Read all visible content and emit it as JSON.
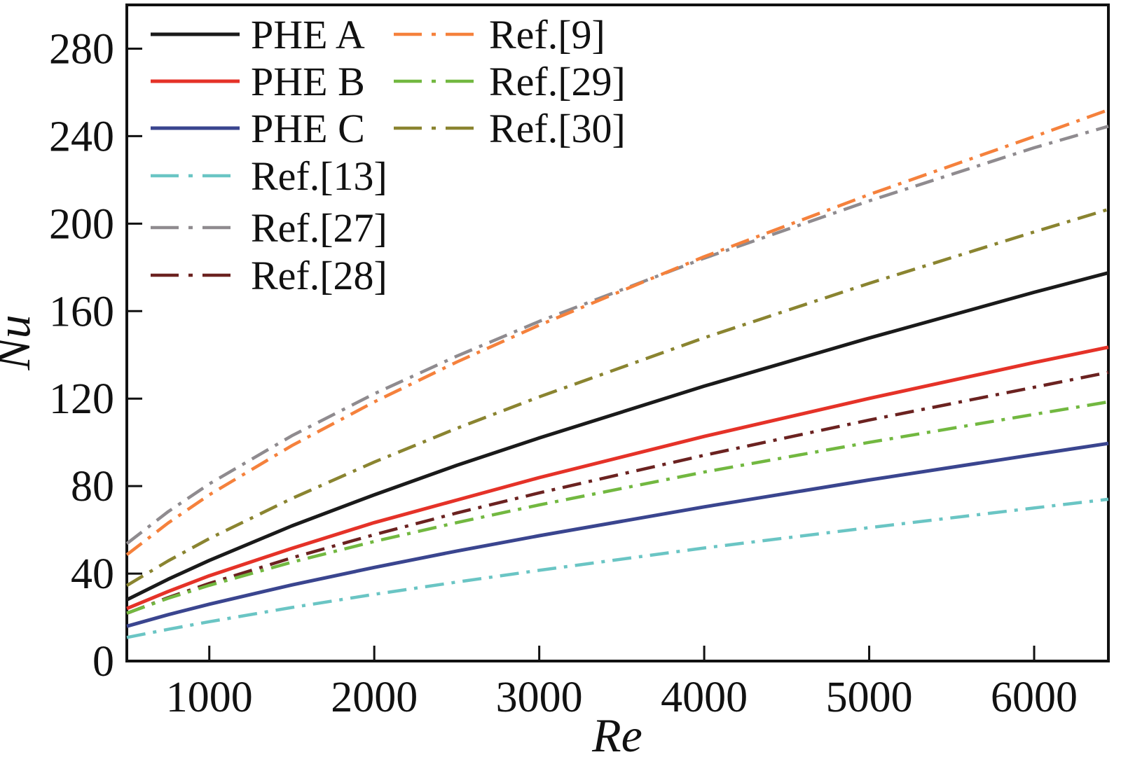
{
  "chart_data": {
    "type": "line",
    "title": "",
    "xlabel": "Re",
    "ylabel": "Nu",
    "xlim": [
      500,
      6450
    ],
    "ylim": [
      0,
      300
    ],
    "xticks": [
      1000,
      2000,
      3000,
      4000,
      5000,
      6000
    ],
    "yticks": [
      0,
      40,
      80,
      120,
      160,
      200,
      240,
      280
    ],
    "grid": false,
    "legend_position": "upper-left-two-columns",
    "x": [
      500,
      750,
      1000,
      1500,
      2000,
      2500,
      3000,
      4000,
      5000,
      6000,
      6450
    ],
    "series": [
      {
        "name": "PHE A",
        "color": "#1a1a1a",
        "style": "solid",
        "values": [
          28.0,
          37.4,
          46.0,
          61.8,
          76.0,
          89.5,
          102.0,
          125.7,
          147.7,
          168.6,
          177.5
        ]
      },
      {
        "name": "PHE B",
        "color": "#e53228",
        "style": "solid",
        "values": [
          24.0,
          31.8,
          39.0,
          51.5,
          63.3,
          73.6,
          83.9,
          102.7,
          120.1,
          136.5,
          143.5
        ]
      },
      {
        "name": "PHE C",
        "color": "#3a458f",
        "style": "solid",
        "values": [
          15.9,
          21.2,
          26.0,
          34.8,
          42.8,
          50.3,
          57.3,
          70.5,
          82.8,
          94.4,
          99.5
        ]
      },
      {
        "name": "Ref.[13]",
        "color": "#6ac5c4",
        "style": "dashdot",
        "values": [
          10.8,
          14.5,
          18.0,
          24.5,
          30.5,
          36.1,
          41.5,
          51.7,
          61.0,
          70.0,
          74.0
        ]
      },
      {
        "name": "Ref.[27]",
        "color": "#8f8b8f",
        "style": "dashdot",
        "values": [
          53.7,
          68.3,
          81.0,
          103.0,
          122.2,
          139.4,
          155.3,
          184.2,
          210.4,
          234.7,
          244.5
        ]
      },
      {
        "name": "Ref.[28]",
        "color": "#6b2220",
        "style": "dashdot",
        "values": [
          21.8,
          29.0,
          35.5,
          47.2,
          57.8,
          67.7,
          76.9,
          94.1,
          110.2,
          125.2,
          132.0
        ]
      },
      {
        "name": "Ref.[9]",
        "color": "#f5813c",
        "style": "dashdot",
        "values": [
          48.6,
          63.1,
          76.0,
          98.5,
          118.5,
          136.7,
          153.6,
          184.9,
          213.3,
          239.8,
          252.0
        ]
      },
      {
        "name": "Ref.[29]",
        "color": "#72b840",
        "style": "dashdot",
        "values": [
          21.9,
          28.7,
          34.6,
          45.2,
          54.7,
          63.3,
          71.4,
          86.4,
          100.0,
          112.8,
          118.5
        ]
      },
      {
        "name": "Ref.[30]",
        "color": "#8a8430",
        "style": "dashdot",
        "values": [
          34.5,
          45.8,
          56.0,
          74.3,
          91.0,
          106.4,
          120.8,
          147.8,
          172.7,
          196.2,
          206.5
        ]
      }
    ],
    "legend": {
      "columns": [
        [
          "PHE A",
          "PHE B",
          "PHE C",
          "Ref.[13]",
          "Ref.[27]",
          "Ref.[28]"
        ],
        [
          "Ref.[9]",
          "Ref.[29]",
          "Ref.[30]"
        ]
      ]
    }
  }
}
